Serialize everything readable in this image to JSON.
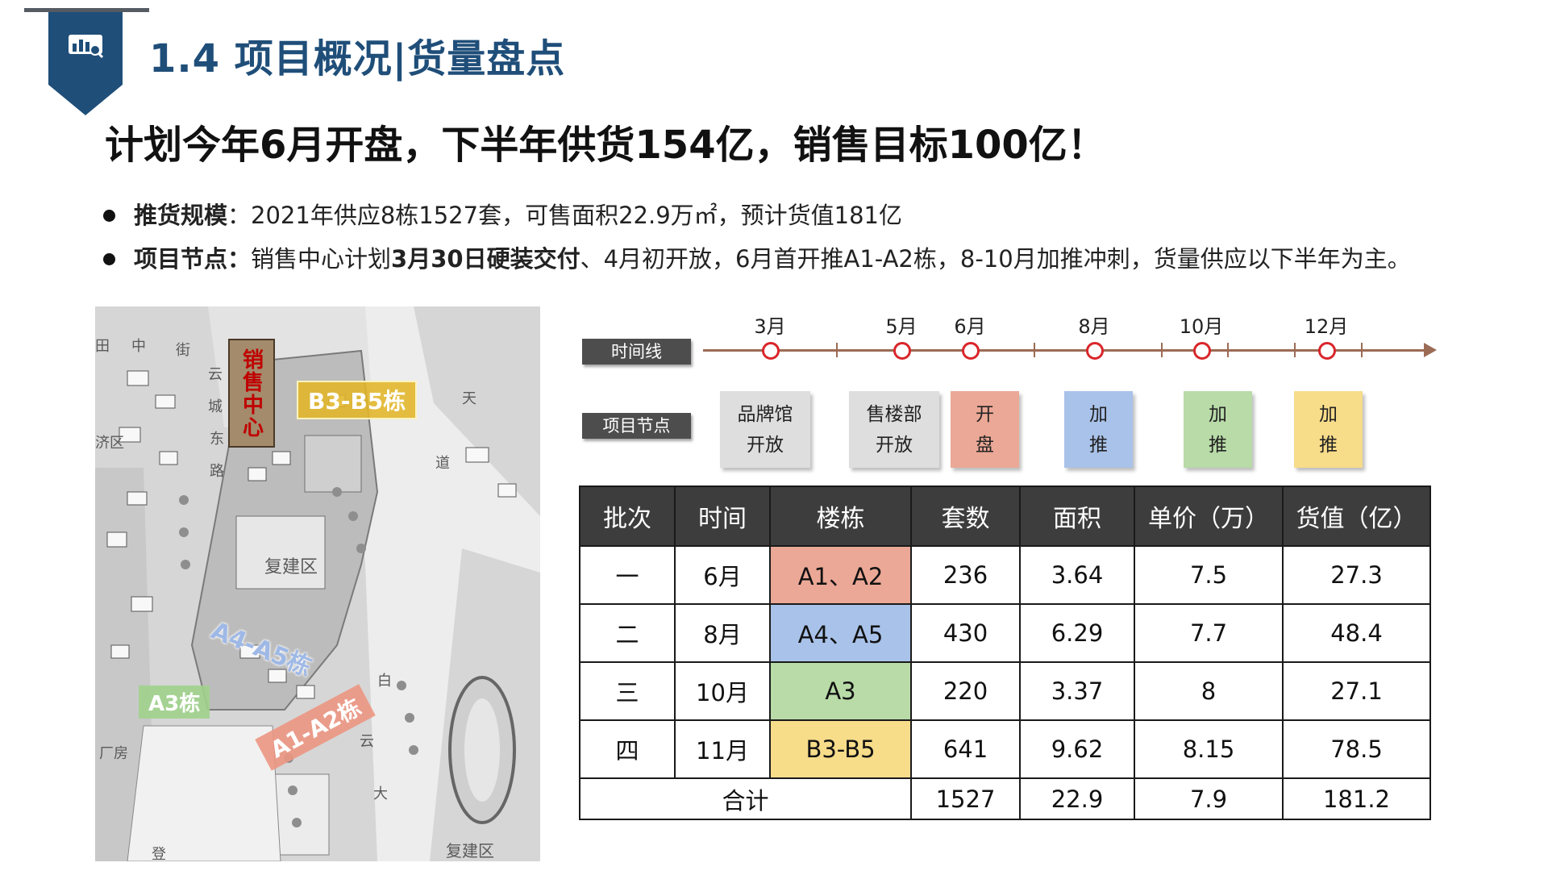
{
  "header": {
    "title": "1.4 项目概况|货量盘点",
    "icon": "presentation-chart-icon",
    "colors": {
      "brand": "#1f4e79"
    }
  },
  "headline": "计划今年6月开盘，下半年供货154亿，销售目标100亿！",
  "bullets": [
    {
      "label": "推货规模",
      "text_1": "：2021年供应8栋1527套，可售面积22.9万㎡，预计货值181亿",
      "highlight": "",
      "text_2": ""
    },
    {
      "label": "项目节点：",
      "text_1": "销售中心计划",
      "highlight": "3月30日硬装交付",
      "text_2": "、4月初开放，6月首开推A1-A2栋，8-10月加推冲刺，货量供应以下半年为主。"
    }
  ],
  "map": {
    "sales_center": "销售中心",
    "labels": {
      "b3": "B3-B5栋",
      "a4": "A4-A5栋",
      "a3": "A3栋",
      "a1": "A1-A2栋"
    },
    "street_text": {
      "road": "路",
      "district": "复建区",
      "district_2": "复建区",
      "road_2": "大",
      "road_3": "道",
      "road_4": "云",
      "road_5": "城",
      "road_6": "东",
      "road_7": "街",
      "road_8": "中",
      "road_9": "田",
      "road_10": "济区",
      "road_11": "厂房",
      "road_12": "登",
      "road_13": "大",
      "road_14": "天",
      "road_15": "白",
      "road_16": "云"
    }
  },
  "timeline": {
    "line_tag": "时间线",
    "node_tag": "项目节点",
    "months": [
      "3月",
      "5月",
      "6月",
      "8月",
      "10月",
      "12月"
    ],
    "cards": [
      {
        "line1": "品牌馆",
        "line2": "开放",
        "color": "#dedede"
      },
      {
        "line1": "售楼部",
        "line2": "开放",
        "color": "#dedede"
      },
      {
        "line1": "开",
        "line2": "盘",
        "color": "#eba896"
      },
      {
        "line1": "加",
        "line2": "推",
        "color": "#a9c2e9"
      },
      {
        "line1": "加",
        "line2": "推",
        "color": "#b8dba8"
      },
      {
        "line1": "加",
        "line2": "推",
        "color": "#f7dc8a"
      }
    ]
  },
  "table": {
    "headers": [
      "批次",
      "时间",
      "楼栋",
      "套数",
      "面积",
      "单价（万）",
      "货值（亿）"
    ],
    "rows": [
      {
        "batch": "一",
        "month": "6月",
        "building": "A1、A2",
        "units": "236",
        "area": "3.64",
        "price": "7.5",
        "value": "27.3",
        "color": "#eba896"
      },
      {
        "batch": "二",
        "month": "8月",
        "building": "A4、A5",
        "units": "430",
        "area": "6.29",
        "price": "7.7",
        "value": "48.4",
        "color": "#a9c2e9"
      },
      {
        "batch": "三",
        "month": "10月",
        "building": "A3",
        "units": "220",
        "area": "3.37",
        "price": "8",
        "value": "27.1",
        "color": "#b8dba8"
      },
      {
        "batch": "四",
        "month": "11月",
        "building": "B3-B5",
        "units": "641",
        "area": "9.62",
        "price": "8.15",
        "value": "78.5",
        "color": "#f7dc8a"
      }
    ],
    "total": {
      "label": "合计",
      "units": "1527",
      "area": "22.9",
      "price": "7.9",
      "value": "181.2"
    }
  }
}
